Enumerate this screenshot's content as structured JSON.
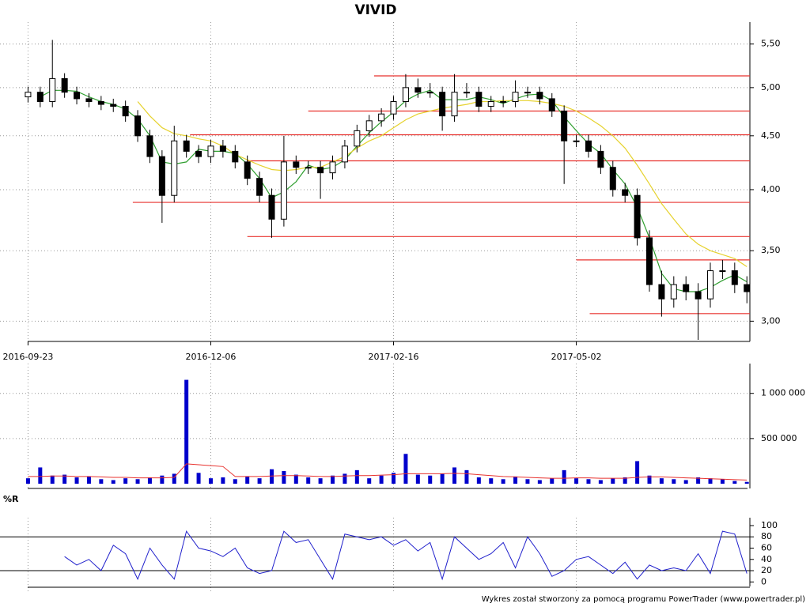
{
  "chart_data": [
    {
      "type": "candlestick",
      "title": "VIVID",
      "log_scale": true,
      "grid": true,
      "xlim": [
        -2.3,
        59.7
      ],
      "xticks": [
        {
          "value": 0,
          "label": "2016-09-23"
        },
        {
          "value": 15,
          "label": "2016-12-06"
        },
        {
          "value": 30,
          "label": "2017-02-16"
        },
        {
          "value": 45,
          "label": "2017-05-02"
        }
      ],
      "ylim": [
        2.87,
        5.77
      ],
      "yticks": [
        {
          "value": 3,
          "label": "3,00"
        },
        {
          "value": 3.5,
          "label": "3,50"
        },
        {
          "value": 4,
          "label": "4,00"
        },
        {
          "value": 4.5,
          "label": "4,50"
        },
        {
          "value": 5,
          "label": "5,00"
        },
        {
          "value": 5.5,
          "label": "5,50"
        }
      ],
      "open": [
        4.9,
        4.95,
        4.85,
        5.1,
        4.95,
        4.88,
        4.85,
        4.82,
        4.8,
        4.7,
        4.5,
        4.3,
        3.95,
        4.45,
        4.35,
        4.3,
        4.4,
        4.35,
        4.25,
        4.1,
        3.95,
        3.75,
        4.25,
        4.2,
        4.2,
        4.15,
        4.25,
        4.4,
        4.55,
        4.65,
        4.72,
        4.85,
        5.0,
        4.95,
        4.95,
        4.7,
        4.95,
        4.95,
        4.8,
        4.85,
        4.85,
        4.95,
        4.95,
        4.88,
        4.75,
        4.45,
        4.45,
        4.35,
        4.2,
        4.0,
        3.95,
        3.6,
        3.25,
        3.15,
        3.25,
        3.2,
        3.15,
        3.35,
        3.35,
        3.25
      ],
      "high": [
        5.01,
        5.01,
        5.55,
        5.16,
        5.01,
        4.94,
        4.91,
        4.88,
        4.86,
        4.76,
        4.56,
        4.36,
        4.6,
        4.51,
        4.41,
        4.46,
        4.46,
        4.41,
        4.31,
        4.16,
        4.01,
        4.5,
        4.31,
        4.26,
        4.26,
        4.31,
        4.46,
        4.61,
        4.71,
        4.78,
        4.91,
        5.15,
        5.1,
        5.05,
        5.01,
        5.15,
        5.05,
        5.01,
        4.91,
        4.91,
        5.08,
        5.01,
        5.01,
        4.94,
        4.81,
        4.51,
        4.51,
        4.41,
        4.26,
        4.06,
        4.01,
        3.66,
        3.35,
        3.31,
        3.31,
        3.26,
        3.41,
        3.43,
        3.41,
        3.31
      ],
      "low": [
        4.84,
        4.79,
        4.79,
        4.89,
        4.82,
        4.79,
        4.76,
        4.74,
        4.64,
        4.44,
        4.24,
        3.72,
        3.89,
        4.29,
        4.24,
        4.24,
        4.29,
        4.19,
        4.04,
        3.89,
        3.6,
        3.69,
        4.14,
        4.14,
        3.92,
        4.09,
        4.19,
        4.34,
        4.49,
        4.59,
        4.66,
        4.79,
        4.89,
        4.89,
        4.55,
        4.64,
        4.89,
        4.74,
        4.74,
        4.79,
        4.79,
        4.89,
        4.82,
        4.69,
        4.05,
        4.39,
        4.29,
        4.14,
        3.94,
        3.89,
        3.54,
        3.2,
        3.03,
        3.09,
        3.14,
        2.88,
        3.09,
        3.29,
        3.19,
        3.12
      ],
      "close": [
        4.95,
        4.85,
        5.1,
        4.95,
        4.88,
        4.85,
        4.82,
        4.8,
        4.7,
        4.5,
        4.3,
        3.95,
        4.45,
        4.35,
        4.3,
        4.4,
        4.35,
        4.25,
        4.1,
        3.95,
        3.75,
        4.25,
        4.2,
        4.2,
        4.15,
        4.25,
        4.4,
        4.55,
        4.65,
        4.72,
        4.85,
        5.0,
        4.95,
        4.95,
        4.7,
        4.95,
        4.95,
        4.8,
        4.85,
        4.85,
        4.95,
        4.95,
        4.88,
        4.75,
        4.45,
        4.45,
        4.35,
        4.2,
        4.0,
        3.95,
        3.6,
        3.25,
        3.15,
        3.25,
        3.2,
        3.15,
        3.35,
        3.35,
        3.25,
        3.2
      ],
      "overlays": [
        {
          "color": "#2e9e2e",
          "values": [
            null,
            4.9,
            4.97,
            4.97,
            4.96,
            4.9,
            4.85,
            4.82,
            4.77,
            4.67,
            4.5,
            4.25,
            4.23,
            4.25,
            4.37,
            4.35,
            4.35,
            4.33,
            4.23,
            4.1,
            3.93,
            3.98,
            4.07,
            4.22,
            4.18,
            4.2,
            4.27,
            4.4,
            4.53,
            4.64,
            4.74,
            4.86,
            4.93,
            4.97,
            4.87,
            4.87,
            4.87,
            4.9,
            4.87,
            4.83,
            4.88,
            4.92,
            4.93,
            4.86,
            4.69,
            4.55,
            4.42,
            4.33,
            4.18,
            4.05,
            3.85,
            3.6,
            3.33,
            3.22,
            3.2,
            3.2,
            3.23,
            3.28,
            3.32,
            3.27
          ]
        },
        {
          "color": "#e6d22e",
          "values": [
            null,
            null,
            null,
            null,
            null,
            null,
            null,
            null,
            null,
            4.85,
            4.7,
            4.58,
            4.52,
            4.5,
            4.47,
            4.45,
            4.4,
            4.32,
            4.27,
            4.22,
            4.18,
            4.17,
            4.18,
            4.2,
            4.2,
            4.25,
            4.3,
            4.38,
            4.45,
            4.5,
            4.58,
            4.66,
            4.72,
            4.75,
            4.78,
            4.8,
            4.82,
            4.85,
            4.85,
            4.86,
            4.86,
            4.86,
            4.85,
            4.83,
            4.8,
            4.75,
            4.68,
            4.6,
            4.5,
            4.38,
            4.22,
            4.05,
            3.88,
            3.75,
            3.63,
            3.55,
            3.5,
            3.47,
            3.44,
            3.38
          ]
        }
      ],
      "levels": {
        "color": "#e8322e",
        "values": [
          5.13,
          4.75,
          4.51,
          4.26,
          3.89,
          3.61,
          3.43,
          3.05
        ],
        "starts": [
          28.4,
          23,
          13.3,
          18,
          8.6,
          18,
          45,
          46.1
        ]
      }
    },
    {
      "type": "bar",
      "color": "#0000cc",
      "xlim": [
        -2.3,
        59.7
      ],
      "ylim": [
        0,
        1330000
      ],
      "yticks": [
        {
          "value": 500000,
          "label": "500 000"
        },
        {
          "value": 1000000,
          "label": "1 000 000"
        }
      ],
      "values": [
        60000,
        180000,
        90000,
        100000,
        70000,
        80000,
        50000,
        40000,
        60000,
        50000,
        70000,
        90000,
        110000,
        1150000,
        120000,
        60000,
        70000,
        50000,
        80000,
        60000,
        160000,
        140000,
        100000,
        70000,
        60000,
        90000,
        110000,
        150000,
        60000,
        90000,
        120000,
        330000,
        100000,
        90000,
        110000,
        180000,
        150000,
        70000,
        60000,
        50000,
        80000,
        50000,
        40000,
        60000,
        150000,
        60000,
        50000,
        40000,
        60000,
        70000,
        250000,
        90000,
        60000,
        50000,
        40000,
        70000,
        60000,
        50000,
        30000,
        20000
      ],
      "average": {
        "color": "#e8322e",
        "values": [
          80000,
          80000,
          85000,
          85000,
          80000,
          80000,
          75000,
          70000,
          70000,
          65000,
          65000,
          65000,
          70000,
          220000,
          210000,
          200000,
          190000,
          80000,
          80000,
          80000,
          85000,
          90000,
          90000,
          85000,
          80000,
          80000,
          85000,
          90000,
          90000,
          95000,
          100000,
          110000,
          110000,
          110000,
          110000,
          115000,
          110000,
          100000,
          90000,
          80000,
          75000,
          70000,
          65000,
          60000,
          60000,
          65000,
          65000,
          60000,
          60000,
          60000,
          70000,
          75000,
          75000,
          70000,
          65000,
          60000,
          55000,
          50000,
          45000,
          40000
        ]
      }
    },
    {
      "type": "line",
      "title": "%R",
      "color": "#2020cc",
      "xlim": [
        -2.3,
        59.7
      ],
      "ylim": [
        -8,
        114
      ],
      "yticks": [
        0,
        20,
        40,
        60,
        80,
        100
      ],
      "levels": [
        20,
        80
      ],
      "values": [
        null,
        null,
        null,
        45,
        30,
        40,
        20,
        65,
        50,
        5,
        60,
        30,
        5,
        90,
        60,
        55,
        45,
        60,
        25,
        15,
        20,
        90,
        70,
        75,
        40,
        5,
        85,
        80,
        75,
        80,
        65,
        75,
        55,
        70,
        5,
        80,
        60,
        40,
        50,
        70,
        25,
        80,
        50,
        10,
        20,
        40,
        45,
        30,
        15,
        35,
        5,
        30,
        20,
        25,
        20,
        50,
        15,
        90,
        85,
        15
      ]
    }
  ],
  "footer": "Wykres został stworzony za pomocą programu PowerTrader (www.powertrader.pl)"
}
